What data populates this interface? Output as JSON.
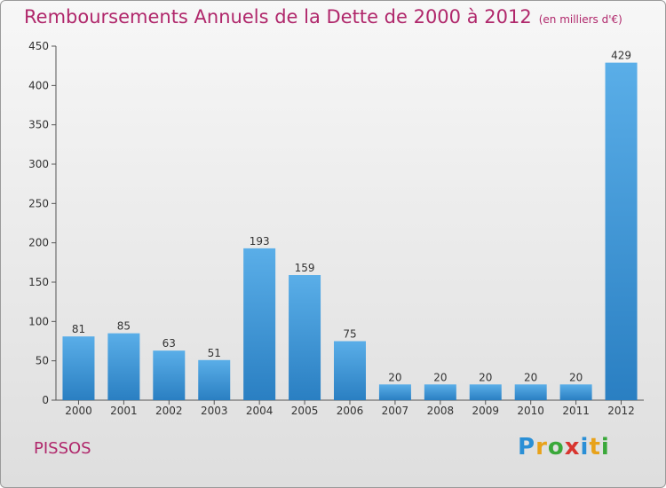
{
  "chart_data": {
    "type": "bar",
    "title": "Remboursements Annuels de la Dette de 2000 à 2012",
    "subtitle": "(en milliers d'€)",
    "categories": [
      "2000",
      "2001",
      "2002",
      "2003",
      "2004",
      "2005",
      "2006",
      "2007",
      "2008",
      "2009",
      "2010",
      "2011",
      "2012"
    ],
    "values": [
      81,
      85,
      63,
      51,
      193,
      159,
      75,
      20,
      20,
      20,
      20,
      20,
      429
    ],
    "ylim": [
      0,
      450
    ],
    "yticks": [
      0,
      50,
      100,
      150,
      200,
      250,
      300,
      350,
      400,
      450
    ],
    "grid": false,
    "bar_color": "#3a95d8",
    "text_color": "#b0276b"
  },
  "commune": "PISSOS",
  "logo": {
    "text": "Proxiti",
    "letters": [
      {
        "ch": "P",
        "color": "#2a8fd6"
      },
      {
        "ch": "r",
        "color": "#e8a21a"
      },
      {
        "ch": "o",
        "color": "#3aa83a"
      },
      {
        "ch": "x",
        "color": "#d8352f"
      },
      {
        "ch": "i",
        "color": "#2a8fd6"
      },
      {
        "ch": "t",
        "color": "#e8a21a"
      },
      {
        "ch": "i",
        "color": "#3aa83a"
      }
    ]
  }
}
